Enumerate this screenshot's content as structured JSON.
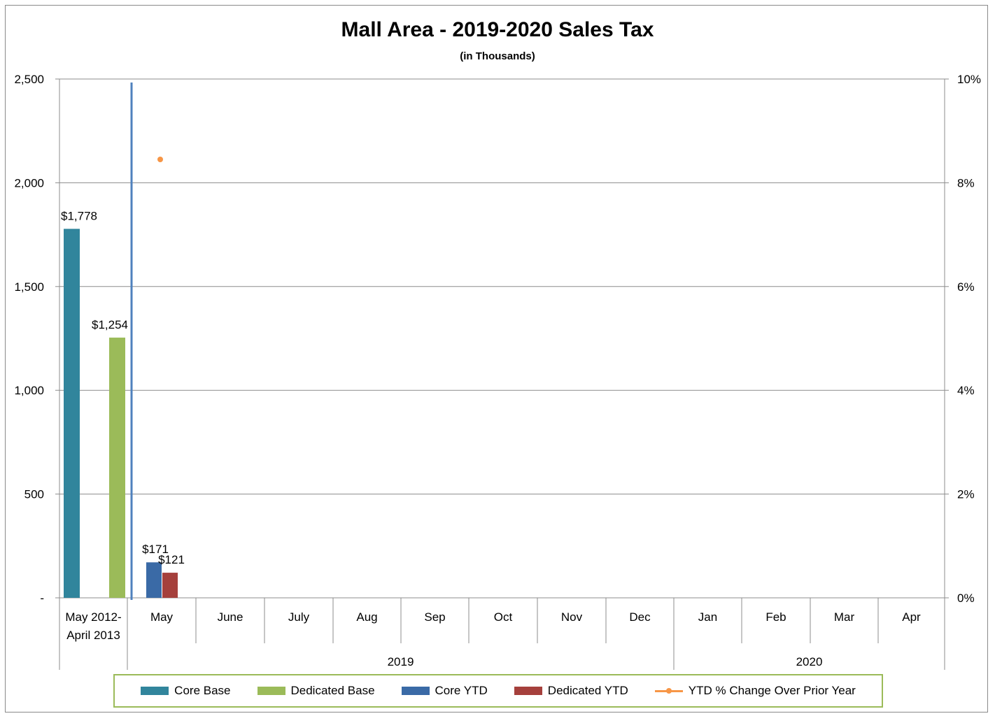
{
  "title": "Mall Area - 2019-2020 Sales Tax",
  "subtitle": "(in Thousands)",
  "chart_data": {
    "type": "bar",
    "title": "Mall Area - 2019-2020 Sales Tax",
    "subtitle": "(in Thousands)",
    "categories": [
      "May 2012-April 2013",
      "May",
      "June",
      "July",
      "Aug",
      "Sep",
      "Oct",
      "Nov",
      "Dec",
      "Jan",
      "Feb",
      "Mar",
      "Apr"
    ],
    "base_category_lines": [
      "May 2012-",
      "April 2013"
    ],
    "category_groups": [
      {
        "label": "2019",
        "from": "May",
        "to": "Dec"
      },
      {
        "label": "2020",
        "from": "Jan",
        "to": "Apr"
      }
    ],
    "y_left": {
      "ticks": [
        "-",
        "500",
        "1,000",
        "1,500",
        "2,000",
        "2,500"
      ],
      "lim": [
        0,
        2500
      ],
      "step": 500
    },
    "y_right": {
      "ticks": [
        "0%",
        "2%",
        "4%",
        "6%",
        "8%",
        "10%"
      ],
      "lim": [
        0,
        10
      ],
      "step": 2
    },
    "grid": true,
    "legend_position": "bottom",
    "series": [
      {
        "name": "Core Base",
        "type": "bar",
        "color": "#31859c",
        "values": [
          1778,
          null,
          null,
          null,
          null,
          null,
          null,
          null,
          null,
          null,
          null,
          null,
          null
        ],
        "labels": [
          "$1,778"
        ]
      },
      {
        "name": "Dedicated Base",
        "type": "bar",
        "color": "#9bbb59",
        "values": [
          1254,
          null,
          null,
          null,
          null,
          null,
          null,
          null,
          null,
          null,
          null,
          null,
          null
        ],
        "labels": [
          "$1,254"
        ]
      },
      {
        "name": "Core YTD",
        "type": "bar",
        "color": "#3a6aa6",
        "values": [
          null,
          171,
          null,
          null,
          null,
          null,
          null,
          null,
          null,
          null,
          null,
          null,
          null
        ],
        "labels": [
          "$171"
        ]
      },
      {
        "name": "Dedicated YTD",
        "type": "bar",
        "color": "#a5403c",
        "values": [
          null,
          121,
          null,
          null,
          null,
          null,
          null,
          null,
          null,
          null,
          null,
          null,
          null
        ],
        "labels": [
          "$121"
        ]
      },
      {
        "name": "YTD % Change Over Prior Year",
        "type": "line",
        "axis": "right",
        "color": "#f79646",
        "values": [
          null,
          8.45,
          null,
          null,
          null,
          null,
          null,
          null,
          null,
          null,
          null,
          null,
          null
        ]
      }
    ]
  }
}
